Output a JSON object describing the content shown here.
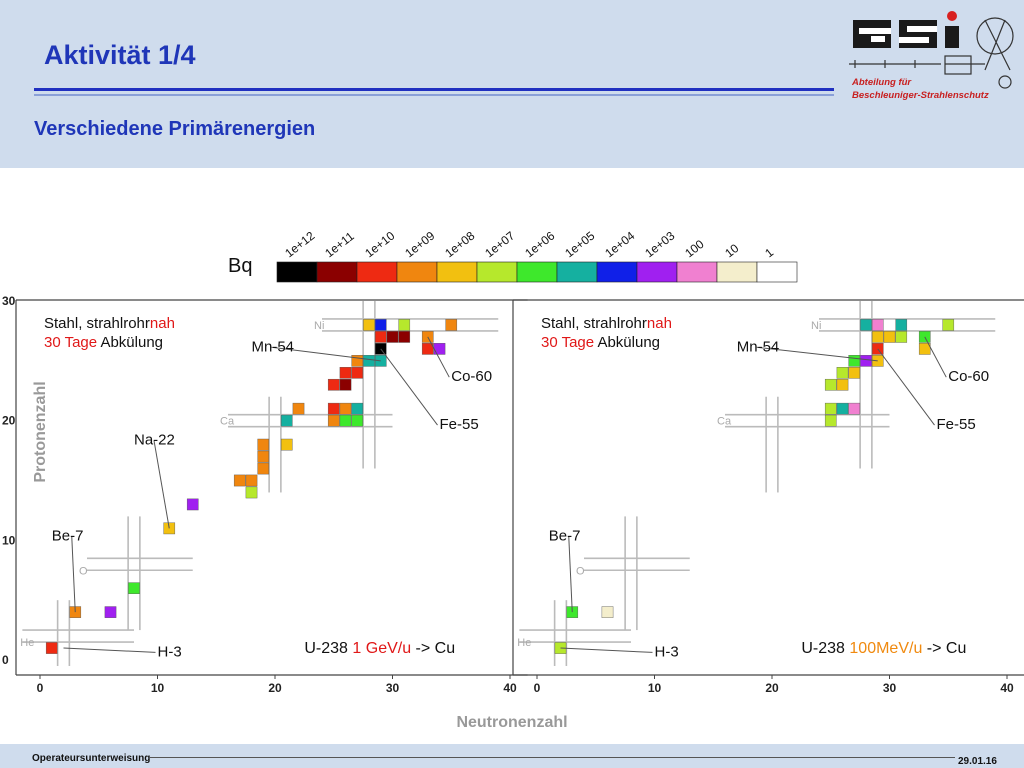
{
  "header": {
    "title": "Aktivität 1/4",
    "subtitle": "Verschiedene Primärenergien",
    "logo_text": "GSI",
    "department_line1": "Abteilung für",
    "department_line2": "Beschleuniger-Strahlenschutz"
  },
  "footer": {
    "left": "Operateursunterweisung",
    "right": "29.01.16"
  },
  "colors": {
    "header_bg": "#cfdced",
    "title": "#1f36b8",
    "accent_red": "#e01818",
    "accent_orange": "#f08a10"
  },
  "chart_data": {
    "type": "heatmap",
    "xlabel": "Neutronenzahl",
    "ylabel": "Protonenzahl",
    "unit": "Bq",
    "scale_labels": [
      "1e+12",
      "1e+11",
      "1e+10",
      "1e+09",
      "1e+08",
      "1e+07",
      "1e+06",
      "1e+05",
      "1e+04",
      "1e+03",
      "100",
      "10",
      "1"
    ],
    "scale_colors": [
      "#000000",
      "#8b0000",
      "#ee2a12",
      "#f0860f",
      "#f2c010",
      "#b6e82c",
      "#3ee82c",
      "#15b0a0",
      "#1020e8",
      "#a020f0",
      "#f080d0",
      "#f4eecc",
      "#ffffff"
    ],
    "xticks": [
      0,
      10,
      20,
      30,
      40
    ],
    "yticks": [
      0,
      10,
      20,
      30
    ],
    "xlim": [
      -1,
      41
    ],
    "ylim": [
      -1,
      30
    ],
    "shell_labels": [
      {
        "label": "He",
        "x": -1,
        "y": 1.5
      },
      {
        "label": "O",
        "x": 4,
        "y": 7.5
      },
      {
        "label": "Ca",
        "x": 16,
        "y": 20
      },
      {
        "label": "Ni",
        "x": 24,
        "y": 28
      }
    ],
    "panels": [
      {
        "sample_part1": "Stahl, strahlrohr",
        "sample_part2": "nah",
        "cooling_part1": "30 Tage",
        "cooling_part2": " Abkülung",
        "beam_part1": "U-238",
        "beam_energy": "1 GeV/u",
        "beam_part3": "-> Cu",
        "isotopes": [
          {
            "label": "Be-7",
            "x": 3,
            "y": 4,
            "lx": 1,
            "ly": 10
          },
          {
            "label": "H-3",
            "x": 2,
            "y": 1,
            "lx": 10,
            "ly": 0.3
          },
          {
            "label": "Na-22",
            "x": 11,
            "y": 11,
            "lx": 8,
            "ly": 18
          },
          {
            "label": "Mn-54",
            "x": 29,
            "y": 25,
            "lx": 18,
            "ly": 25.8
          },
          {
            "label": "Co-60",
            "x": 33,
            "y": 27,
            "lx": 35,
            "ly": 23.3
          },
          {
            "label": "Fe-55",
            "x": 29,
            "y": 26,
            "lx": 34,
            "ly": 19.3
          }
        ],
        "cells": [
          {
            "n": 1,
            "z": 1,
            "v": 2
          },
          {
            "n": 3,
            "z": 4,
            "v": 3
          },
          {
            "n": 6,
            "z": 4,
            "v": 9
          },
          {
            "n": 8,
            "z": 6,
            "v": 6
          },
          {
            "n": 11,
            "z": 11,
            "v": 4
          },
          {
            "n": 13,
            "z": 13,
            "v": 9
          },
          {
            "n": 17,
            "z": 15,
            "v": 3
          },
          {
            "n": 18,
            "z": 15,
            "v": 3
          },
          {
            "n": 18,
            "z": 14,
            "v": 5
          },
          {
            "n": 19,
            "z": 16,
            "v": 3
          },
          {
            "n": 19,
            "z": 17,
            "v": 3
          },
          {
            "n": 19,
            "z": 18,
            "v": 3
          },
          {
            "n": 21,
            "z": 18,
            "v": 4
          },
          {
            "n": 21,
            "z": 20,
            "v": 7
          },
          {
            "n": 22,
            "z": 21,
            "v": 3
          },
          {
            "n": 25,
            "z": 20,
            "v": 3
          },
          {
            "n": 25,
            "z": 21,
            "v": 2
          },
          {
            "n": 26,
            "z": 21,
            "v": 3
          },
          {
            "n": 26,
            "z": 20,
            "v": 6
          },
          {
            "n": 27,
            "z": 21,
            "v": 7
          },
          {
            "n": 27,
            "z": 20,
            "v": 6
          },
          {
            "n": 25,
            "z": 23,
            "v": 2
          },
          {
            "n": 26,
            "z": 23,
            "v": 1
          },
          {
            "n": 26,
            "z": 24,
            "v": 2
          },
          {
            "n": 27,
            "z": 24,
            "v": 2
          },
          {
            "n": 27,
            "z": 25,
            "v": 3
          },
          {
            "n": 28,
            "z": 25,
            "v": 7
          },
          {
            "n": 29,
            "z": 25,
            "v": 7
          },
          {
            "n": 29,
            "z": 26,
            "v": 0
          },
          {
            "n": 29,
            "z": 27,
            "v": 2
          },
          {
            "n": 30,
            "z": 27,
            "v": 1
          },
          {
            "n": 31,
            "z": 27,
            "v": 1
          },
          {
            "n": 28,
            "z": 28,
            "v": 4
          },
          {
            "n": 29,
            "z": 28,
            "v": 8
          },
          {
            "n": 31,
            "z": 28,
            "v": 5
          },
          {
            "n": 33,
            "z": 27,
            "v": 3
          },
          {
            "n": 33,
            "z": 26,
            "v": 2
          },
          {
            "n": 34,
            "z": 26,
            "v": 9
          },
          {
            "n": 35,
            "z": 28,
            "v": 3
          }
        ]
      },
      {
        "sample_part1": "Stahl, strahlrohr",
        "sample_part2": "nah",
        "cooling_part1": "30 Tage",
        "cooling_part2": " Abkülung",
        "beam_part1": "U-238",
        "beam_energy": "100MeV/u",
        "beam_part3": "-> Cu",
        "isotopes": [
          {
            "label": "Be-7",
            "x": 3,
            "y": 4,
            "lx": 1,
            "ly": 10
          },
          {
            "label": "H-3",
            "x": 2,
            "y": 1,
            "lx": 10,
            "ly": 0.3
          },
          {
            "label": "Mn-54",
            "x": 29,
            "y": 25,
            "lx": 17,
            "ly": 25.8
          },
          {
            "label": "Co-60",
            "x": 33,
            "y": 27,
            "lx": 35,
            "ly": 23.3
          },
          {
            "label": "Fe-55",
            "x": 29,
            "y": 26,
            "lx": 34,
            "ly": 19.3
          }
        ],
        "cells": [
          {
            "n": 2,
            "z": 1,
            "v": 5
          },
          {
            "n": 3,
            "z": 4,
            "v": 6
          },
          {
            "n": 6,
            "z": 4,
            "v": 11
          },
          {
            "n": 25,
            "z": 20,
            "v": 5
          },
          {
            "n": 25,
            "z": 21,
            "v": 5
          },
          {
            "n": 26,
            "z": 21,
            "v": 7
          },
          {
            "n": 27,
            "z": 21,
            "v": 10
          },
          {
            "n": 25,
            "z": 23,
            "v": 5
          },
          {
            "n": 26,
            "z": 23,
            "v": 4
          },
          {
            "n": 26,
            "z": 24,
            "v": 5
          },
          {
            "n": 27,
            "z": 24,
            "v": 4
          },
          {
            "n": 27,
            "z": 25,
            "v": 6
          },
          {
            "n": 28,
            "z": 25,
            "v": 9
          },
          {
            "n": 29,
            "z": 25,
            "v": 4
          },
          {
            "n": 29,
            "z": 26,
            "v": 2
          },
          {
            "n": 29,
            "z": 27,
            "v": 4
          },
          {
            "n": 30,
            "z": 27,
            "v": 4
          },
          {
            "n": 31,
            "z": 27,
            "v": 5
          },
          {
            "n": 28,
            "z": 28,
            "v": 7
          },
          {
            "n": 29,
            "z": 28,
            "v": 10
          },
          {
            "n": 31,
            "z": 28,
            "v": 7
          },
          {
            "n": 33,
            "z": 27,
            "v": 6
          },
          {
            "n": 33,
            "z": 26,
            "v": 4
          },
          {
            "n": 35,
            "z": 28,
            "v": 5
          }
        ]
      }
    ]
  }
}
